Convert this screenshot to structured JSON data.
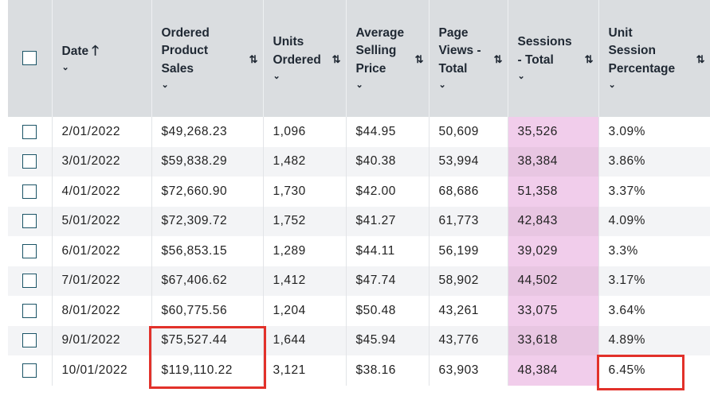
{
  "columns": {
    "date": {
      "label": "Date",
      "sort_glyph": "🡑",
      "chev": "⌄"
    },
    "ordered_product_sales": {
      "line1": "Ordered",
      "line2": "Product",
      "line3": "Sales",
      "sort_glyph": "⇅",
      "chev": "⌄"
    },
    "units_ordered": {
      "line1": "Units",
      "line2": "Ordered",
      "sort_glyph": "⇅",
      "chev": "⌄"
    },
    "average_selling_price": {
      "line1": "Average",
      "line2": "Selling",
      "line3": "Price",
      "sort_glyph": "⇅",
      "chev": "⌄"
    },
    "page_views_total": {
      "line1": "Page",
      "line2": "Views -",
      "line3": "Total",
      "sort_glyph": "⇅",
      "chev": "⌄"
    },
    "sessions_total": {
      "line1": "Sessions",
      "line2": "- Total",
      "sort_glyph": "⇅",
      "chev": "⌄"
    },
    "unit_session_percentage": {
      "line1": "Unit",
      "line2": "Session",
      "line3": "Percentage",
      "sort_glyph": "⇅",
      "chev": "⌄"
    }
  },
  "rows": [
    {
      "date": "2/01/2022",
      "sales": "$49,268.23",
      "units": "1,096",
      "asp": "$44.95",
      "pageviews": "50,609",
      "sessions": "35,526",
      "usp": "3.09%"
    },
    {
      "date": "3/01/2022",
      "sales": "$59,838.29",
      "units": "1,482",
      "asp": "$40.38",
      "pageviews": "53,994",
      "sessions": "38,384",
      "usp": "3.86%"
    },
    {
      "date": "4/01/2022",
      "sales": "$72,660.90",
      "units": "1,730",
      "asp": "$42.00",
      "pageviews": "68,686",
      "sessions": "51,358",
      "usp": "3.37%"
    },
    {
      "date": "5/01/2022",
      "sales": "$72,309.72",
      "units": "1,752",
      "asp": "$41.27",
      "pageviews": "61,773",
      "sessions": "42,843",
      "usp": "4.09%"
    },
    {
      "date": "6/01/2022",
      "sales": "$56,853.15",
      "units": "1,289",
      "asp": "$44.11",
      "pageviews": "56,199",
      "sessions": "39,029",
      "usp": "3.3%"
    },
    {
      "date": "7/01/2022",
      "sales": "$67,406.62",
      "units": "1,412",
      "asp": "$47.74",
      "pageviews": "58,902",
      "sessions": "44,502",
      "usp": "3.17%"
    },
    {
      "date": "8/01/2022",
      "sales": "$60,775.56",
      "units": "1,204",
      "asp": "$50.48",
      "pageviews": "43,261",
      "sessions": "33,075",
      "usp": "3.64%"
    },
    {
      "date": "9/01/2022",
      "sales": "$75,527.44",
      "units": "1,644",
      "asp": "$45.94",
      "pageviews": "43,776",
      "sessions": "33,618",
      "usp": "4.89%"
    },
    {
      "date": "10/01/2022",
      "sales": "$119,110.22",
      "units": "3,121",
      "asp": "$38.16",
      "pageviews": "63,903",
      "sessions": "48,384",
      "usp": "6.45%"
    }
  ],
  "colors": {
    "header_bg": "#dadde0",
    "sessions_highlight": "#f1cdeb",
    "annotation_red": "#e2312a",
    "checkbox_border": "#1b5466"
  }
}
